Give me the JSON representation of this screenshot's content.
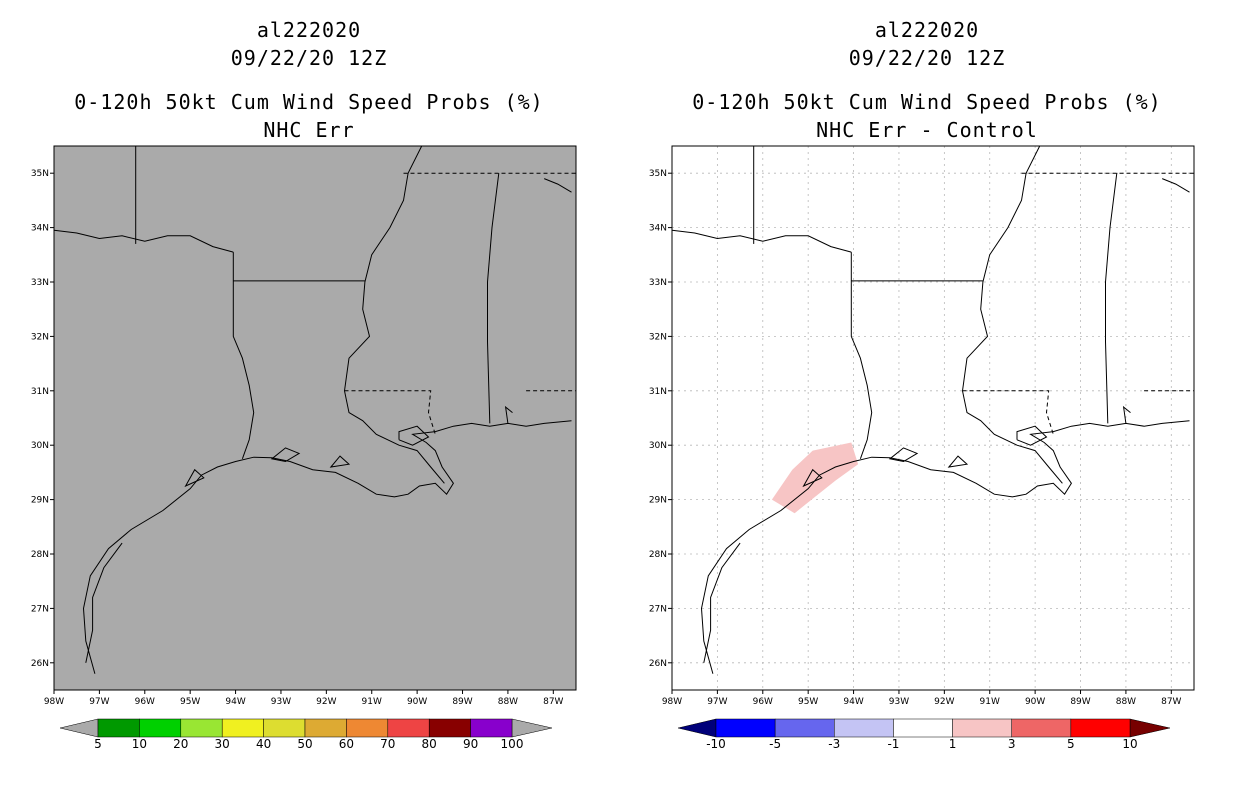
{
  "panels": [
    {
      "storm_id": "al222020",
      "init_time": "09/22/20 12Z",
      "title_line1": "0-120h 50kt Cum Wind Speed Probs (%)",
      "title_line2": "NHC Err",
      "map_background": "#aaaaaa",
      "colorbar": {
        "colors": [
          "#009900",
          "#00d000",
          "#99e633",
          "#f0f020",
          "#dddd30",
          "#ddaa33",
          "#ee8833",
          "#ee4444",
          "#880000",
          "#8800cc"
        ],
        "end_colors": [
          "#aaaaaa",
          "#aaaaaa"
        ],
        "labels": [
          "5",
          "10",
          "20",
          "30",
          "40",
          "50",
          "60",
          "70",
          "80",
          "90",
          "100"
        ]
      }
    },
    {
      "storm_id": "al222020",
      "init_time": "09/22/20 12Z",
      "title_line1": "0-120h 50kt Cum Wind Speed Probs (%)",
      "title_line2": "NHC Err - Control",
      "map_background": "#ffffff",
      "shaded_region_color": "#f7c5c5",
      "colorbar": {
        "colors": [
          "#0000ff",
          "#6666ee",
          "#c4c4f4",
          "#ffffff",
          "#f7c5c5",
          "#ee6666",
          "#ff0000"
        ],
        "end_colors": [
          "#00007a",
          "#770000"
        ],
        "labels": [
          "-10",
          "-5",
          "-3",
          "-1",
          "1",
          "3",
          "5",
          "10"
        ]
      }
    }
  ],
  "axes": {
    "lon_labels": [
      "98W",
      "97W",
      "96W",
      "95W",
      "94W",
      "93W",
      "92W",
      "91W",
      "90W",
      "89W",
      "88W",
      "87W"
    ],
    "lat_labels": [
      "26N",
      "27N",
      "28N",
      "29N",
      "30N",
      "31N",
      "32N",
      "33N",
      "34N",
      "35N"
    ],
    "lon_range": [
      -98,
      -86.5
    ],
    "lat_range": [
      25.5,
      35.5
    ]
  }
}
